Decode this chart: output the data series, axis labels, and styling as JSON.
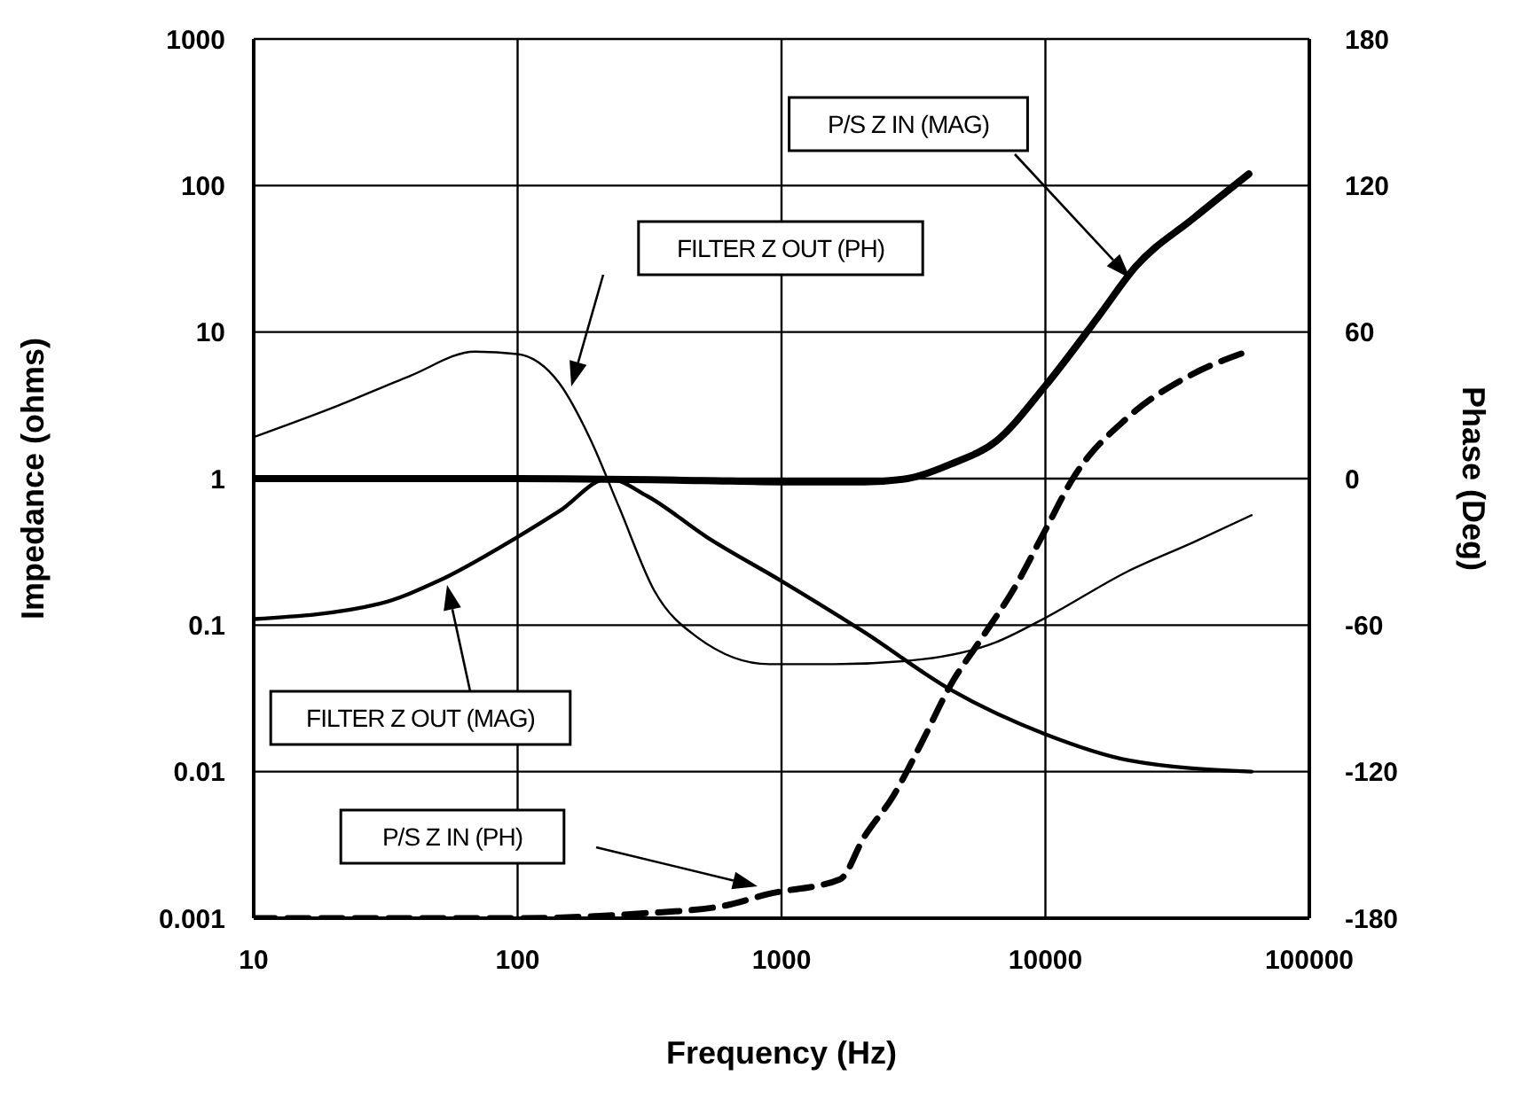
{
  "chart_data": {
    "type": "line",
    "xlabel": "Frequency (Hz)",
    "ylabel": "Impedance (ohms)",
    "y2label": "Phase (Deg)",
    "log": "xy",
    "grid": true,
    "xlim": [
      10,
      100000
    ],
    "xticks": [
      10,
      100,
      1000,
      10000,
      100000
    ],
    "ylim": [
      0.001,
      1000
    ],
    "yticks": [
      0.001,
      0.01,
      0.1,
      1,
      10,
      100,
      1000
    ],
    "y2lim": [
      -180,
      180
    ],
    "y2ticks": [
      -180,
      -120,
      -60,
      0,
      60,
      120,
      180
    ],
    "series": [
      {
        "color": "#000000",
        "line_style": "solid",
        "x": [
          10,
          100,
          500,
          1000,
          2050,
          3000,
          4400,
          6500,
          10000,
          16000,
          22000,
          36500,
          59000
        ],
        "values": [
          1,
          1,
          0.97,
          0.95,
          0.95,
          1,
          1.26,
          1.8,
          4.3,
          13,
          28,
          60,
          120
        ]
      },
      {
        "color": "#000000",
        "line_style": "dashed",
        "axis": "y2",
        "x": [
          10,
          50,
          100,
          300,
          600,
          900,
          1670,
          2050,
          2650,
          3400,
          4400,
          5600,
          7800,
          10000,
          12700,
          20500,
          35000,
          58000
        ],
        "values": [
          -180,
          -180,
          -180,
          -178,
          -175,
          -170,
          -164,
          -147,
          -130,
          -108,
          -84,
          -67,
          -43,
          -21,
          0,
          25,
          42,
          52
        ]
      },
      {
        "color": "#000000",
        "line_style": "solid",
        "axis": "y2",
        "x": [
          10,
          21,
          39,
          69,
          100,
          144,
          187,
          243,
          330,
          480,
          900,
          1590,
          3400,
          6500,
          10000,
          20500,
          36500,
          60400
        ],
        "values": [
          17,
          30,
          42,
          52,
          51,
          39,
          17,
          -12,
          -46,
          -65,
          -76,
          -76,
          -74,
          -67,
          -57,
          -38,
          -26,
          -15
        ]
      },
      {
        "color": "#000000",
        "line_style": "solid",
        "x": [
          10,
          30,
          50,
          100,
          144,
          220,
          310,
          520,
          1000,
          2050,
          4400,
          10000,
          20500,
          60400
        ],
        "values": [
          0.11,
          0.14,
          0.2,
          0.4,
          0.6,
          1,
          0.76,
          0.4,
          0.2,
          0.09,
          0.036,
          0.018,
          0.012,
          0.01
        ]
      }
    ],
    "annotations": [
      "P/S Z IN (MAG)",
      "FILTER Z OUT (PH)",
      "FILTER Z OUT (MAG)",
      "P/S Z IN (PH)"
    ]
  }
}
